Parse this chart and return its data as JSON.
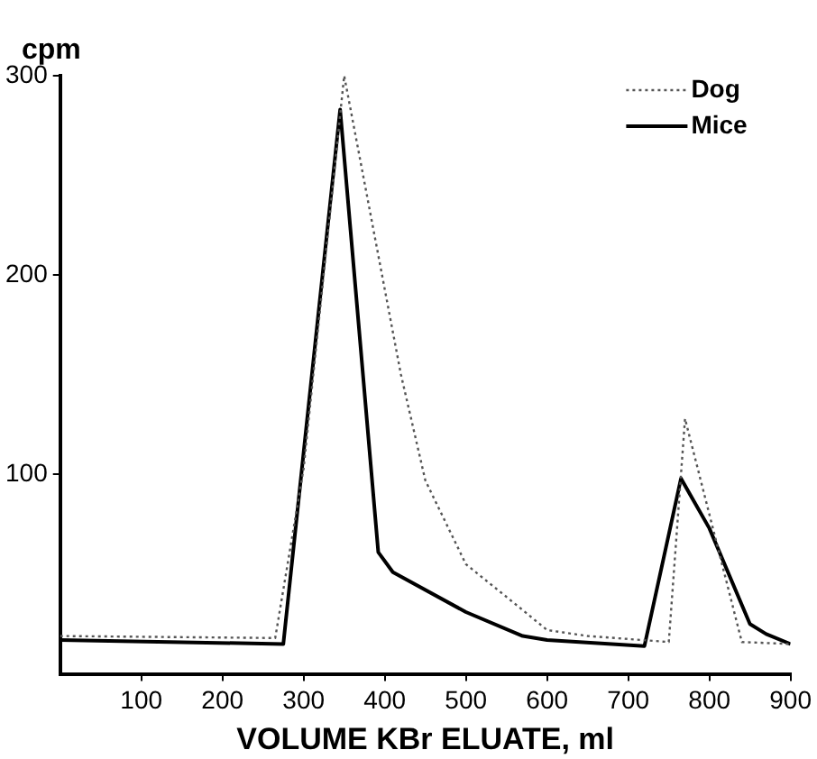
{
  "chart_data": {
    "type": "line",
    "xlabel": "VOLUME KBr ELUATE, ml",
    "ylabel": "cpm",
    "xlim": [
      0,
      900
    ],
    "ylim": [
      0,
      300
    ],
    "xticks": [
      100,
      200,
      300,
      400,
      500,
      600,
      700,
      800,
      900
    ],
    "yticks": [
      100,
      200,
      300
    ],
    "grid": false,
    "legend": "top right",
    "marker": "none",
    "series": [
      {
        "name": "Dog",
        "color": "#555555",
        "line_style": "dotted",
        "x": [
          0,
          265,
          300,
          350,
          420,
          450,
          500,
          564,
          600,
          650,
          750,
          770,
          840,
          900
        ],
        "values": [
          19,
          18,
          103,
          300,
          150,
          97,
          55,
          34,
          22,
          19,
          16,
          128,
          16,
          15
        ]
      },
      {
        "name": "Mice",
        "color": "#000000",
        "line_style": "solid",
        "x": [
          0,
          275,
          300,
          345,
          392,
          410,
          500,
          570,
          600,
          720,
          765,
          800,
          850,
          870,
          900
        ],
        "values": [
          17,
          15,
          111,
          283,
          61,
          51,
          31,
          19,
          17,
          14,
          98,
          73,
          25,
          20,
          15
        ]
      }
    ]
  }
}
